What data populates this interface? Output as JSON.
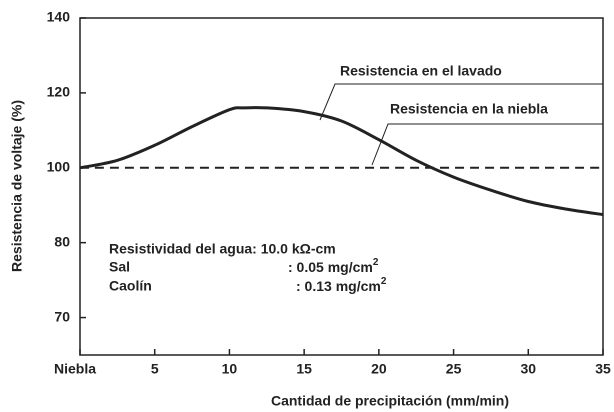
{
  "chart_data": {
    "type": "line",
    "xlabel": "Cantidad de precipitación (mm/min)",
    "ylabel": "Resistencia de voltaje (%)",
    "xlim": [
      0,
      35
    ],
    "xticks": [
      {
        "value": 0,
        "label": "Niebla"
      },
      5,
      10,
      15,
      20,
      25,
      30,
      35
    ],
    "ylim": [
      65,
      140
    ],
    "yticks": [
      70,
      80,
      100,
      120,
      140
    ],
    "yscale": "piecewise",
    "series": [
      {
        "name": "Resistencia en el lavado",
        "color": "#222222",
        "style": "solid",
        "x": [
          0,
          2.5,
          5,
          7.5,
          10,
          11,
          12.5,
          15,
          17.5,
          20,
          22.5,
          25,
          27.5,
          30,
          32.5,
          35
        ],
        "values": [
          100,
          102,
          106,
          111,
          115.5,
          116,
          116,
          115,
          112.5,
          107.5,
          102,
          97.5,
          94,
          91,
          89,
          87.5
        ]
      },
      {
        "name": "Resistencia en la niebla",
        "color": "#222222",
        "style": "dashed",
        "x": [
          0,
          35
        ],
        "values": [
          100,
          100
        ]
      }
    ],
    "annotations": [
      {
        "text": "Resistividad del agua: 10.0 kΩ-cm"
      },
      {
        "text": "Sal"
      },
      {
        "text": ": 0.05 mg/cm",
        "sup": "2"
      },
      {
        "text": "Caolín"
      },
      {
        "text": ": 0.13 mg/cm",
        "sup": "2"
      }
    ]
  }
}
